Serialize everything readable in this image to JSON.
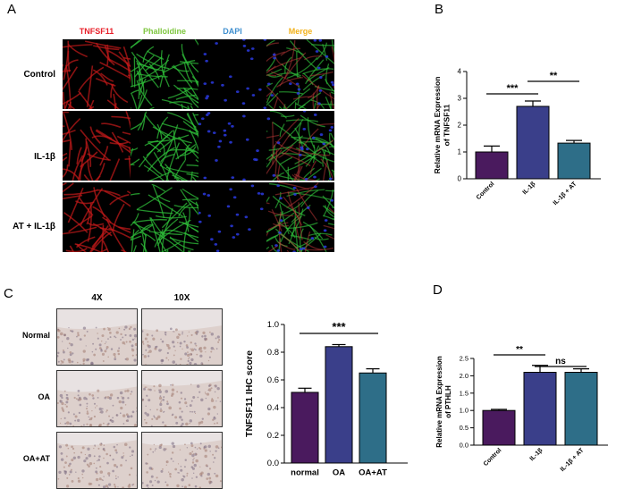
{
  "panels": {
    "A": "A",
    "B": "B",
    "C": "C",
    "D": "D"
  },
  "panel_a": {
    "channels": [
      {
        "label": "TNFSF11",
        "color": "#e8202a"
      },
      {
        "label": "Phalloidine",
        "color": "#7ec63f"
      },
      {
        "label": "DAPI",
        "color": "#3f8fcf"
      },
      {
        "label": "Merge",
        "color": "#f2b21c"
      }
    ],
    "rows": [
      "Control",
      "IL-1β",
      "AT + IL-1β"
    ]
  },
  "panel_c": {
    "columns": [
      "4X",
      "10X"
    ],
    "rows": [
      "Normal",
      "OA",
      "OA+AT"
    ]
  },
  "chart_data": [
    {
      "panel": "B",
      "type": "bar",
      "categories": [
        "Control",
        "IL-1β",
        "IL-1β + AT"
      ],
      "values": [
        1.0,
        2.7,
        1.33
      ],
      "errors": [
        0.22,
        0.2,
        0.1
      ],
      "colors": [
        "#4a1a5e",
        "#3a3f8a",
        "#2e6e88"
      ],
      "ylabel": "Relative  mRNA Expression of TNFSF11",
      "ylim": [
        0,
        4
      ],
      "yticks": [
        "0",
        "1",
        "2",
        "3",
        "4"
      ],
      "significance": [
        {
          "from": 0,
          "to": 1,
          "label": "***"
        },
        {
          "from": 1,
          "to": 2,
          "label": "**"
        }
      ]
    },
    {
      "panel": "C",
      "type": "bar",
      "categories": [
        "normal",
        "OA",
        "OA+AT"
      ],
      "values": [
        0.51,
        0.84,
        0.65
      ],
      "errors": [
        0.03,
        0.015,
        0.03
      ],
      "colors": [
        "#4a1a5e",
        "#3a3f8a",
        "#2e6e88"
      ],
      "ylabel": "TNFSF11 IHC score",
      "ylim": [
        0,
        1.0
      ],
      "yticks": [
        "0.0",
        "0.2",
        "0.4",
        "0.6",
        "0.8",
        "1.0"
      ],
      "significance": [
        {
          "from": 0,
          "to": 2,
          "label": "***"
        }
      ]
    },
    {
      "panel": "D",
      "type": "bar",
      "categories": [
        "Control",
        "IL-1β",
        "IL-1β + AT"
      ],
      "values": [
        1.0,
        2.1,
        2.1
      ],
      "errors": [
        0.03,
        0.2,
        0.1
      ],
      "colors": [
        "#4a1a5e",
        "#3a3f8a",
        "#2e6e88"
      ],
      "ylabel": "Relative  mRNA Expression of PTHLH",
      "ylim": [
        0,
        2.5
      ],
      "yticks": [
        "0.0",
        "0.5",
        "1.0",
        "1.5",
        "2.0",
        "2.5"
      ],
      "significance": [
        {
          "from": 0,
          "to": 1,
          "label": "**"
        },
        {
          "from": 1,
          "to": 2,
          "label": "ns"
        }
      ]
    }
  ]
}
